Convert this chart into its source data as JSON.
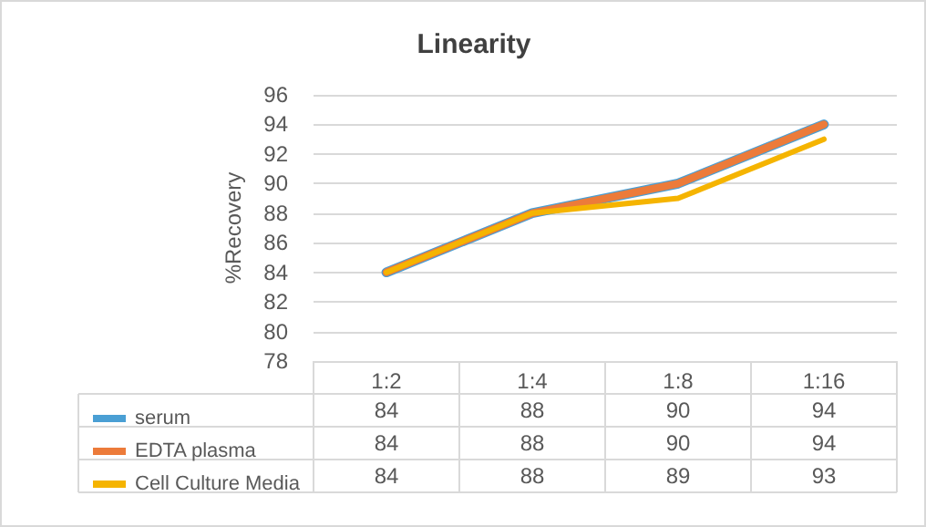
{
  "chart_data": {
    "type": "line",
    "title": "Linearity",
    "ylabel": "%Recovery",
    "categories": [
      "1:2",
      "1:4",
      "1:8",
      "1:16"
    ],
    "series": [
      {
        "name": "serum",
        "color": "#4a9fd4",
        "values": [
          84,
          88,
          90,
          94
        ]
      },
      {
        "name": "EDTA plasma",
        "color": "#ec7b3a",
        "values": [
          84,
          88,
          90,
          94
        ]
      },
      {
        "name": "Cell Culture Media",
        "color": "#f5b400",
        "values": [
          84,
          88,
          89,
          93
        ]
      }
    ],
    "ylim": [
      78,
      96
    ],
    "yticks": [
      78,
      80,
      82,
      84,
      86,
      88,
      90,
      92,
      94,
      96
    ],
    "grid": "y",
    "legend": "bottom",
    "data_labels": true,
    "marker": "none",
    "line_style": "solid"
  }
}
